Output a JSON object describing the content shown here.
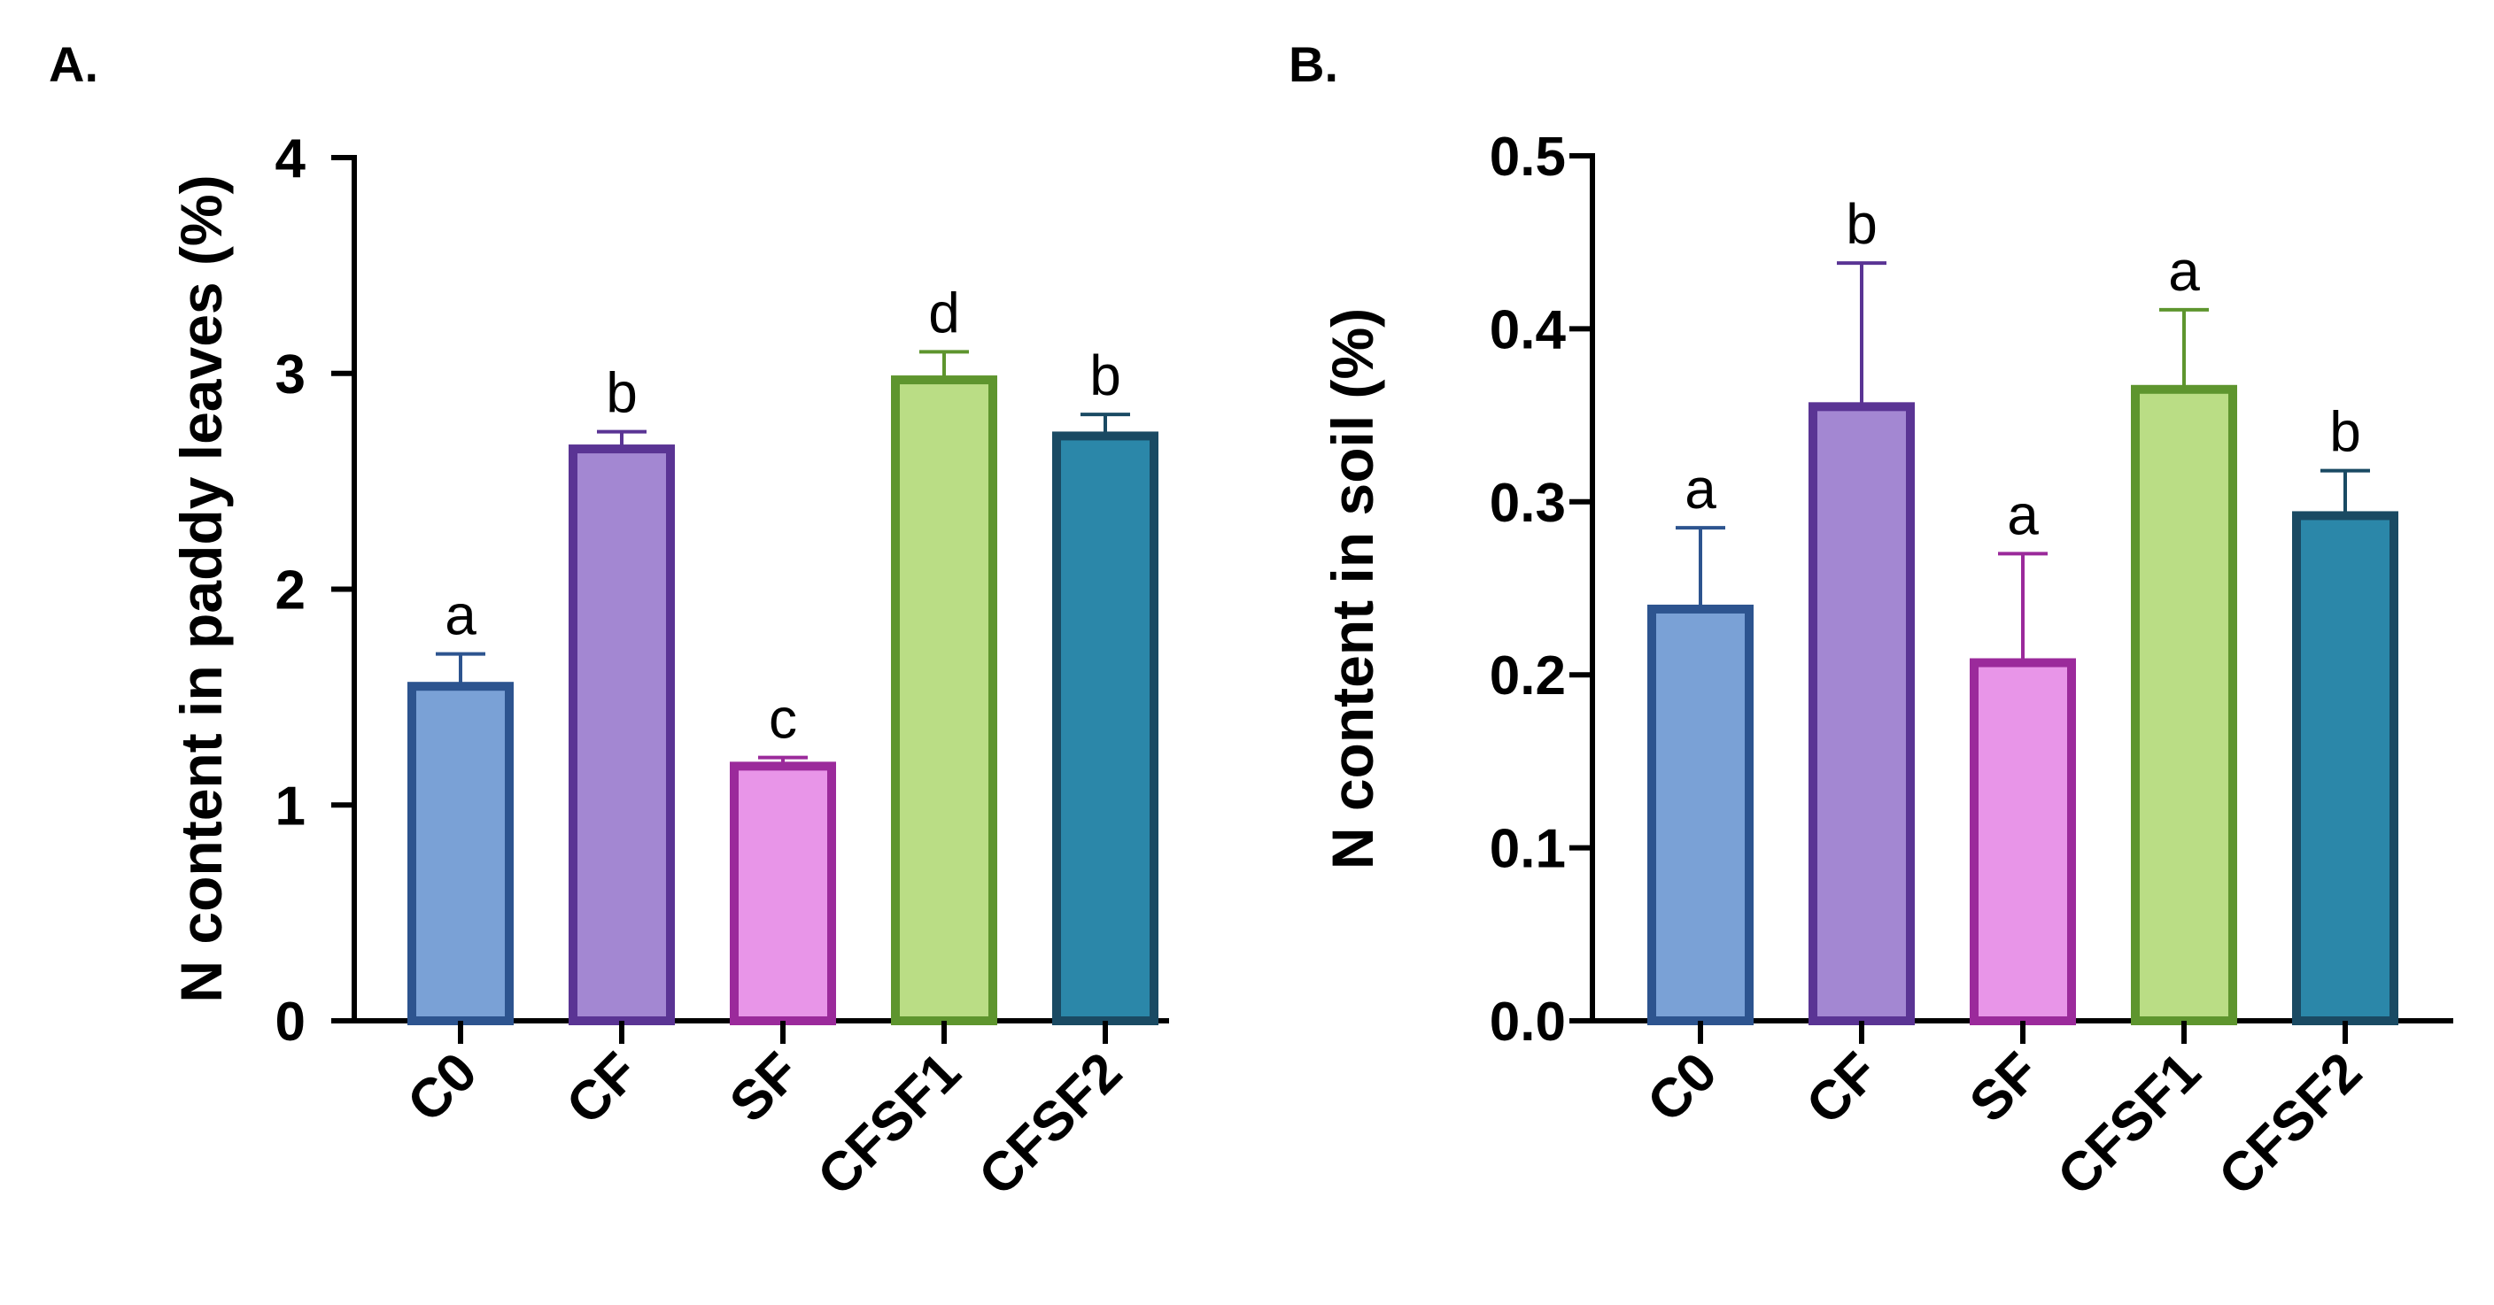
{
  "chart_data": [
    {
      "panel_label": "A.",
      "type": "bar",
      "title": "",
      "xlabel": "",
      "ylabel": "N content in paddy leaves (%)",
      "ylim": [
        0,
        4
      ],
      "yticks": [
        0,
        1,
        2,
        3,
        4
      ],
      "ytick_labels": [
        "0",
        "1",
        "2",
        "3",
        "4"
      ],
      "categories": [
        "C0",
        "CF",
        "SF",
        "CFSF1",
        "CFSF2"
      ],
      "values": [
        1.55,
        2.65,
        1.18,
        2.97,
        2.71
      ],
      "errors": [
        0.15,
        0.08,
        0.04,
        0.13,
        0.1
      ],
      "significance": [
        "a",
        "b",
        "c",
        "d",
        "b"
      ],
      "fill_colors": [
        "#7aa1d6",
        "#a387d2",
        "#e895e8",
        "#badd85",
        "#2b87a9"
      ],
      "edge_colors": [
        "#2d548f",
        "#5a3494",
        "#9b2a9b",
        "#5e952e",
        "#1a4a63"
      ]
    },
    {
      "panel_label": "B.",
      "type": "bar",
      "title": "",
      "xlabel": "",
      "ylabel": "N content in soil (%)",
      "ylim": [
        0,
        0.5
      ],
      "yticks": [
        0,
        0.1,
        0.2,
        0.3,
        0.4,
        0.5
      ],
      "ytick_labels": [
        "0.0",
        "0.1",
        "0.2",
        "0.3",
        "0.4",
        "0.5"
      ],
      "categories": [
        "C0",
        "CF",
        "SF",
        "CFSF1",
        "CFSF2"
      ],
      "values": [
        0.238,
        0.355,
        0.207,
        0.365,
        0.292
      ],
      "errors": [
        0.047,
        0.083,
        0.063,
        0.046,
        0.026
      ],
      "significance": [
        "a",
        "b",
        "a",
        "a",
        "b"
      ],
      "fill_colors": [
        "#7aa1d6",
        "#a387d2",
        "#e895e8",
        "#badd85",
        "#2b87a9"
      ],
      "edge_colors": [
        "#2d548f",
        "#5a3494",
        "#9b2a9b",
        "#5e952e",
        "#1a4a63"
      ]
    }
  ]
}
